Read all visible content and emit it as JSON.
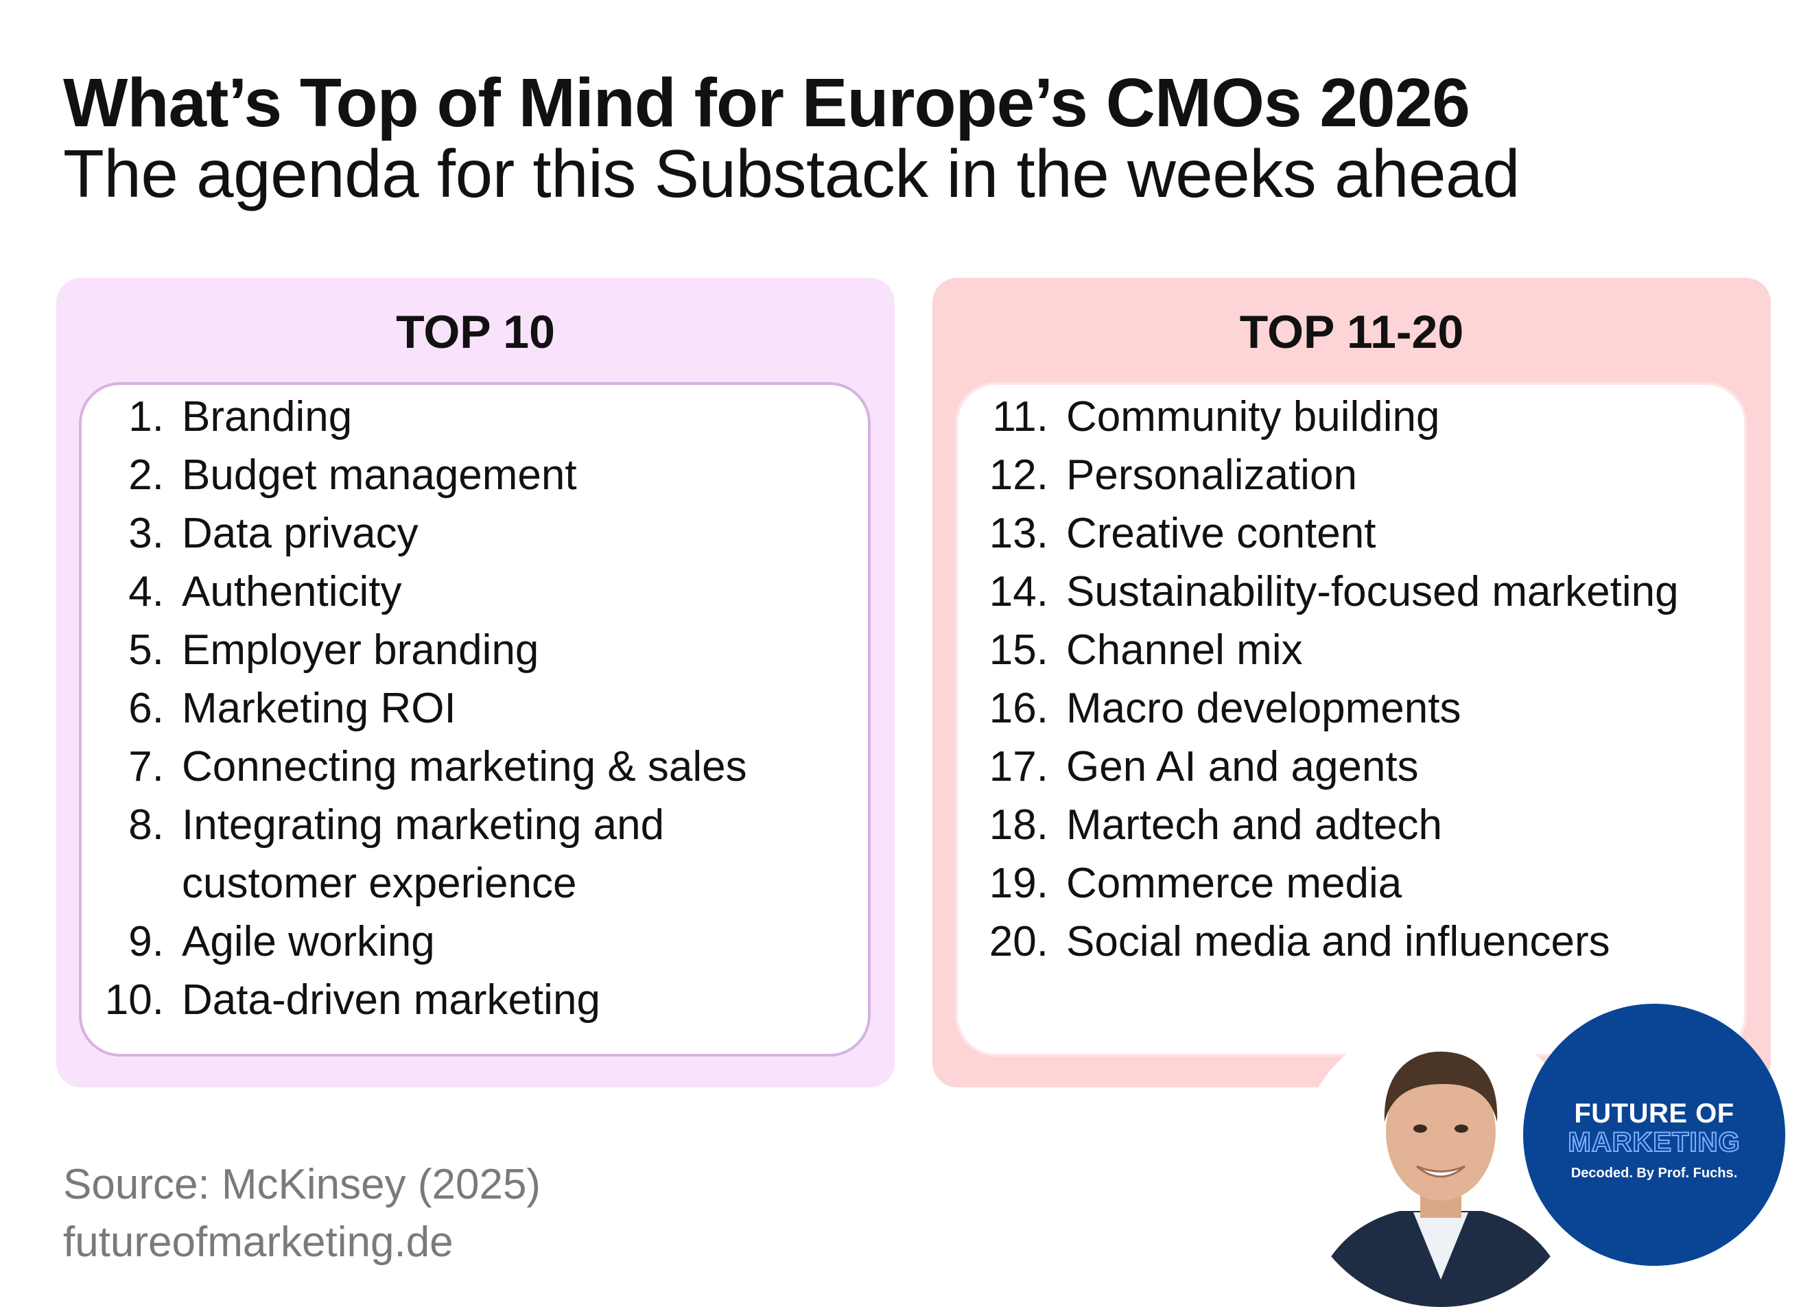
{
  "header": {
    "title": "What’s Top of Mind for Europe’s CMOs 2026",
    "subtitle": "The agenda for this Substack in the weeks ahead"
  },
  "top10": {
    "heading": "TOP 10",
    "items": [
      {
        "num": "1.",
        "text": "Branding"
      },
      {
        "num": "2.",
        "text": "Budget management"
      },
      {
        "num": "3.",
        "text": "Data privacy"
      },
      {
        "num": "4.",
        "text": "Authenticity"
      },
      {
        "num": "5.",
        "text": "Employer branding"
      },
      {
        "num": "6.",
        "text": "Marketing ROI"
      },
      {
        "num": "7.",
        "text": "Connecting marketing & sales"
      },
      {
        "num": "8.",
        "text": "Integrating marketing and customer experience"
      },
      {
        "num": "9.",
        "text": "Agile working"
      },
      {
        "num": "10.",
        "text": "Data-driven marketing"
      }
    ]
  },
  "top20": {
    "heading": "TOP 11-20",
    "items": [
      {
        "num": "11.",
        "text": "Community building"
      },
      {
        "num": "12.",
        "text": "Personalization"
      },
      {
        "num": "13.",
        "text": "Creative content"
      },
      {
        "num": "14.",
        "text": "Sustainability-focused marketing"
      },
      {
        "num": "15.",
        "text": "Channel mix"
      },
      {
        "num": "16.",
        "text": "Macro developments"
      },
      {
        "num": "17.",
        "text": "Gen AI and agents"
      },
      {
        "num": "18.",
        "text": "Martech and adtech"
      },
      {
        "num": "19.",
        "text": "Commerce media"
      },
      {
        "num": "20.",
        "text": "Social media and influencers"
      }
    ]
  },
  "footer": {
    "source": "Source: McKinsey (2025)",
    "website": "futureofmarketing.de"
  },
  "badge": {
    "line1": "FUTURE OF",
    "line2": "MARKETING",
    "line3": "Decoded. By Prof. Fuchs."
  },
  "colors": {
    "left_panel": "#f9e2fb",
    "right_panel": "#fdd5d6",
    "badge_bg": "#0a4595"
  }
}
